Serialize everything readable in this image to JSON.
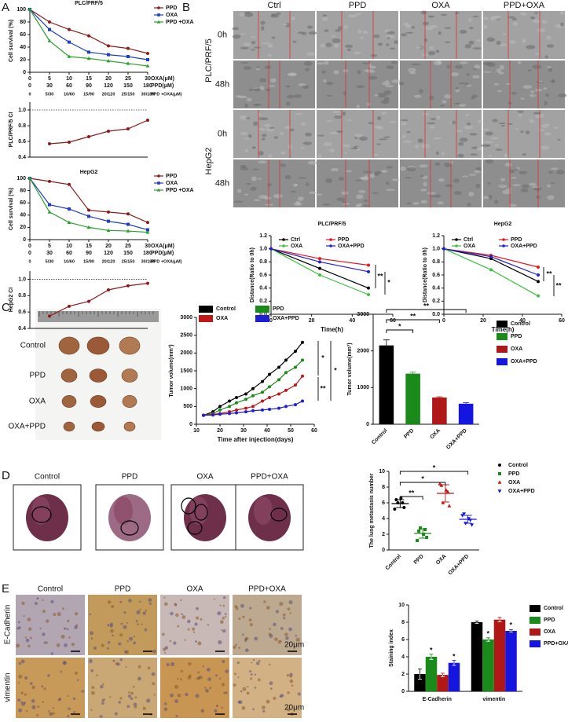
{
  "panel_labels": [
    "A",
    "B",
    "C",
    "D",
    "E"
  ],
  "wound_healing": {
    "columns": [
      "Ctrl",
      "PPD",
      "OXA",
      "PPD+OXA"
    ],
    "rows": [
      "0h",
      "48h",
      "0h",
      "48h"
    ],
    "cell_lines": [
      "PLC/PRF/5",
      "HepG2"
    ]
  },
  "tumor_photo": {
    "groups": [
      "Control",
      "PPD",
      "OXA",
      "OXA+PPD"
    ]
  },
  "lung_images": {
    "groups": [
      "Control",
      "PPD",
      "OXA",
      "PPD+OXA"
    ]
  },
  "ihc_images": {
    "columns": [
      "Control",
      "PPD",
      "OXA",
      "PPD+OXA"
    ],
    "rows": [
      "E-Cadherin",
      "vimentin"
    ],
    "scale_bars": [
      "20μm",
      "20μm"
    ]
  },
  "chart_data": [
    {
      "type": "line",
      "title": "PLC/PRF/5",
      "ylabel": "Cell survival (%)",
      "xlabel": "OXA(μM)",
      "x": [
        0,
        5,
        10,
        15,
        20,
        25,
        30
      ],
      "xlim": [
        0,
        30
      ],
      "xticks": [
        0,
        5,
        10,
        15,
        20,
        25,
        30
      ],
      "ylim": [
        0,
        100
      ],
      "yticks": [
        0,
        20,
        40,
        60,
        80,
        100
      ],
      "x_rows": [
        {
          "name": "PPD(μM)",
          "labels": [
            0,
            30,
            60,
            90,
            120,
            150,
            180
          ]
        },
        {
          "name": "PPD +OXA(μM)",
          "labels": [
            "0",
            "5/30",
            "10/60",
            "15/90",
            "20/120",
            "25/150",
            "30/180"
          ]
        }
      ],
      "series": [
        {
          "name": "PPD",
          "color": "#8b1a1a",
          "marker": "circle",
          "values": [
            100,
            80,
            68,
            58,
            42,
            38,
            30
          ]
        },
        {
          "name": "OXA",
          "color": "#1f3fbf",
          "marker": "square",
          "values": [
            100,
            68,
            48,
            32,
            28,
            25,
            20
          ]
        },
        {
          "name": "PPD +OXA",
          "color": "#2ca02c",
          "marker": "triangle",
          "values": [
            100,
            50,
            25,
            22,
            18,
            14,
            10
          ]
        }
      ]
    },
    {
      "type": "line",
      "ylabel": "PLC/PRF/5 CI",
      "x": [
        5,
        10,
        15,
        20,
        25,
        30
      ],
      "xlim": [
        0,
        30
      ],
      "ylim": [
        0.4,
        1.1
      ],
      "yticks": [
        0.4,
        0.6,
        0.8,
        {
          "value": 1,
          "label": "1.0"
        }
      ],
      "reference_line": 1,
      "color": "#8b1a1a",
      "values": [
        0.57,
        0.59,
        0.66,
        0.73,
        0.76,
        0.87
      ]
    },
    {
      "type": "line",
      "title": "HepG2",
      "ylabel": "Cell survival (%)",
      "xlabel": "OXA(μM)",
      "x": [
        0,
        5,
        10,
        15,
        20,
        25,
        30
      ],
      "xlim": [
        0,
        30
      ],
      "xticks": [
        0,
        5,
        10,
        15,
        20,
        25,
        30
      ],
      "ylim": [
        0,
        100
      ],
      "yticks": [
        0,
        20,
        40,
        60,
        80,
        100
      ],
      "x_rows": [
        {
          "name": "PPD(μM)",
          "labels": [
            0,
            30,
            60,
            90,
            120,
            150,
            180
          ]
        },
        {
          "name": "PPD +OXA(μM)",
          "labels": [
            "0",
            "5/30",
            "10/60",
            "15/90",
            "20/120",
            "25/150",
            "30/180"
          ]
        }
      ],
      "series": [
        {
          "name": "PPD",
          "color": "#8b1a1a",
          "marker": "circle",
          "values": [
            100,
            95,
            90,
            48,
            45,
            42,
            28
          ]
        },
        {
          "name": "OXA",
          "color": "#1f3fbf",
          "marker": "square",
          "values": [
            100,
            57,
            50,
            38,
            30,
            25,
            16
          ]
        },
        {
          "name": "PPD +OXA",
          "color": "#2ca02c",
          "marker": "triangle",
          "values": [
            100,
            45,
            28,
            20,
            15,
            14,
            12
          ]
        }
      ]
    },
    {
      "type": "line",
      "ylabel": "HepG2 CI",
      "x": [
        5,
        10,
        15,
        20,
        25,
        30
      ],
      "xlim": [
        0,
        30
      ],
      "ylim": [
        0.4,
        1.1
      ],
      "yticks": [
        0.4,
        0.6,
        0.8,
        {
          "value": 1,
          "label": "1.0"
        }
      ],
      "reference_line": 1,
      "color": "#8b1a1a",
      "values": [
        0.55,
        0.67,
        0.73,
        0.87,
        0.92,
        0.95
      ]
    },
    {
      "type": "line",
      "title": "PLC/PRF/5",
      "xlabel": "Time(h)",
      "ylabel": "Distance(Ratio to 0h)",
      "x": [
        0,
        24,
        48
      ],
      "xlim": [
        0,
        60
      ],
      "xticks": [
        0,
        20,
        40,
        60
      ],
      "ylim": [
        0,
        1.2
      ],
      "yticks": [
        {
          "value": 0,
          "label": "0.0"
        },
        0.2,
        0.4,
        0.6,
        0.8,
        {
          "value": 1,
          "label": "1.0"
        },
        1.2
      ],
      "series": [
        {
          "name": "Ctrl",
          "color": "#000000",
          "values": [
            1,
            0.7,
            0.4
          ]
        },
        {
          "name": "PPD",
          "color": "#e8141b",
          "values": [
            1,
            0.85,
            0.75
          ]
        },
        {
          "name": "OXA",
          "color": "#3cc23c",
          "values": [
            1,
            0.6,
            0.3
          ]
        },
        {
          "name": "OXA+PPD",
          "color": "#2020d0",
          "values": [
            1,
            0.8,
            0.65
          ]
        }
      ],
      "annotations": [
        "**",
        "*"
      ]
    },
    {
      "type": "line",
      "title": "HepG2",
      "xlabel": "Time(h)",
      "ylabel": "Distance(Ratio to 0h)",
      "x": [
        0,
        24,
        48
      ],
      "xlim": [
        0,
        60
      ],
      "xticks": [
        0,
        20,
        40,
        60
      ],
      "ylim": [
        0,
        1.2
      ],
      "yticks": [
        {
          "value": 0,
          "label": "0.0"
        },
        0.2,
        0.4,
        0.6,
        0.8,
        {
          "value": 1,
          "label": "1.0"
        },
        1.2
      ],
      "series": [
        {
          "name": "Ctrl",
          "color": "#000000",
          "values": [
            1,
            0.85,
            0.5
          ]
        },
        {
          "name": "PPD",
          "color": "#e8141b",
          "values": [
            1,
            0.9,
            0.72
          ]
        },
        {
          "name": "OXA",
          "color": "#3cc23c",
          "values": [
            1,
            0.68,
            0.28
          ]
        },
        {
          "name": "OXA+PPD",
          "color": "#2020d0",
          "values": [
            1,
            0.88,
            0.6
          ]
        }
      ],
      "annotations": [
        "**",
        "**"
      ]
    },
    {
      "type": "line",
      "xlabel": "Time after injection(days)",
      "ylabel": "Tumor volume(mm³)",
      "x": [
        13,
        17,
        20,
        24,
        27,
        31,
        34,
        38,
        41,
        45,
        48,
        52,
        55
      ],
      "xlim": [
        10,
        60
      ],
      "xticks": [
        10,
        20,
        30,
        40,
        50,
        60
      ],
      "ylim": [
        0,
        3000
      ],
      "yticks": [
        0,
        500,
        1000,
        1500,
        2000,
        2500,
        3000
      ],
      "series": [
        {
          "name": "Control",
          "color": "#000000",
          "values": [
            250,
            350,
            500,
            650,
            750,
            850,
            1000,
            1200,
            1400,
            1600,
            1800,
            2050,
            2300
          ]
        },
        {
          "name": "PPD",
          "color": "#1a8a1a",
          "values": [
            250,
            300,
            400,
            500,
            600,
            700,
            800,
            900,
            1050,
            1250,
            1450,
            1600,
            1800
          ]
        },
        {
          "name": "OXA",
          "color": "#c01818",
          "values": [
            250,
            280,
            300,
            350,
            400,
            450,
            500,
            650,
            750,
            850,
            950,
            1100,
            1350
          ]
        },
        {
          "name": "OXA+PPD",
          "color": "#1e1ed2",
          "values": [
            250,
            260,
            280,
            300,
            320,
            350,
            380,
            400,
            420,
            450,
            500,
            550,
            650
          ]
        }
      ],
      "annotations": [
        "*",
        "*",
        "**"
      ]
    },
    {
      "type": "bar",
      "ylabel": "Tumor volume(mm³)",
      "categories": [
        "Control",
        "PPD",
        "OXA",
        "OXA+PPD"
      ],
      "values": [
        2150,
        1380,
        730,
        560
      ],
      "errors": [
        150,
        40,
        20,
        30
      ],
      "colors": [
        "#000000",
        "#1a8a1a",
        "#b01818",
        "#1515e0"
      ],
      "ylim": [
        0,
        3000
      ],
      "yticks": [
        0,
        1000,
        2000,
        3000
      ],
      "annotations": [
        "*",
        "**",
        "**"
      ]
    },
    {
      "type": "dot",
      "ylabel": "The lung metastasis number",
      "categories": [
        "Control",
        "PPD",
        "OXA",
        "OXA+PPD"
      ],
      "points": [
        [
          5.2,
          6.0,
          6.6,
          5.4,
          6.4,
          6.0
        ],
        [
          1.2,
          2.8,
          2.0,
          1.6,
          2.4,
          2.6
        ],
        [
          8.4,
          6.0,
          7.6,
          5.6,
          8.2,
          7.4
        ],
        [
          4.4,
          3.4,
          4.0,
          3.2,
          4.6,
          3.8
        ]
      ],
      "values": [
        5.9,
        2.1,
        7.2,
        3.9
      ],
      "errors": [
        0.5,
        0.6,
        1.1,
        0.5
      ],
      "colors": [
        "#000000",
        "#1a8a1a",
        "#c01818",
        "#1515e0"
      ],
      "markers": [
        "circle",
        "square",
        "triangle",
        "triangle-down"
      ],
      "ylim": [
        0,
        10
      ],
      "yticks": [
        0,
        2,
        4,
        6,
        8,
        10
      ],
      "annotations": [
        "**",
        "*",
        "*"
      ]
    },
    {
      "type": "bar",
      "ylabel": "Staining index",
      "categories": [
        "E-Cadherin",
        "vimentin"
      ],
      "series": [
        {
          "name": "Control",
          "color": "#000000",
          "values": [
            2.0,
            8.0
          ],
          "errors": [
            0.6,
            0.15
          ]
        },
        {
          "name": "PPD",
          "color": "#1a8a1a",
          "values": [
            4.0,
            6.0
          ],
          "errors": [
            0.3,
            0.2
          ]
        },
        {
          "name": "OXA",
          "color": "#b01818",
          "values": [
            1.9,
            8.3
          ],
          "errors": [
            0.2,
            0.25
          ]
        },
        {
          "name": "PPD+OXA",
          "color": "#1515e0",
          "values": [
            3.3,
            7.0
          ],
          "errors": [
            0.3,
            0.15
          ]
        }
      ],
      "ylim": [
        0,
        10
      ],
      "yticks": [
        0,
        2,
        4,
        6,
        8,
        10
      ],
      "annotations": [
        "*",
        "*",
        "*",
        "*"
      ]
    }
  ]
}
